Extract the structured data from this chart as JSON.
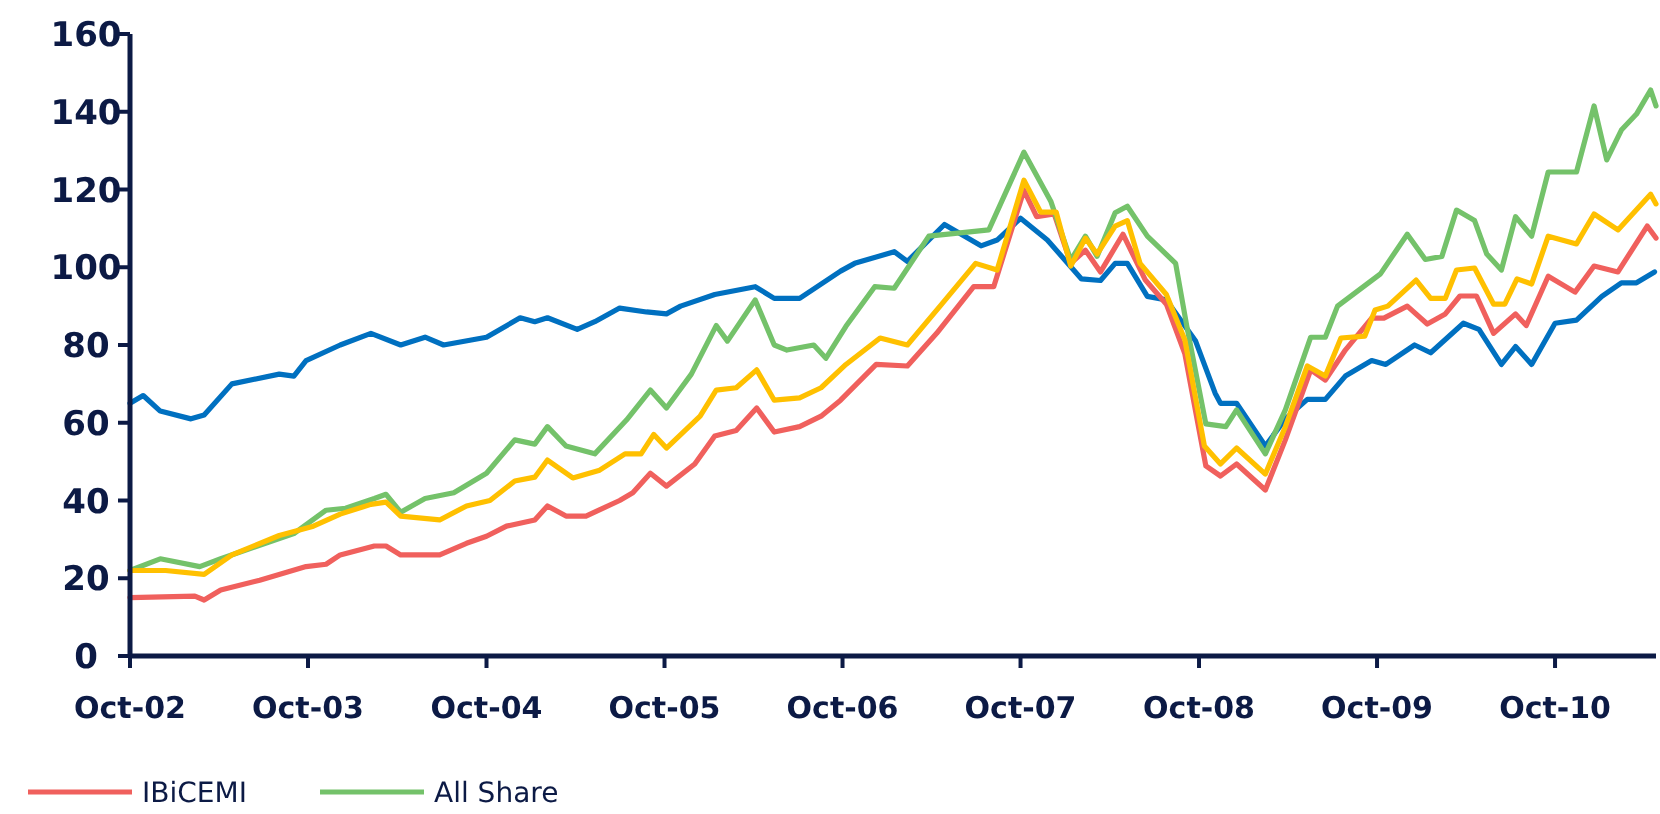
{
  "chart_data": {
    "type": "line",
    "xlim": [
      "2002-10-01",
      "2011-04-26"
    ],
    "ylim": [
      0,
      160
    ],
    "yticks": [
      0,
      20,
      40,
      60,
      80,
      100,
      120,
      140,
      160
    ],
    "xticks": [
      {
        "value": "2002-10-01",
        "label": "Oct-02"
      },
      {
        "value": "2003-10-01",
        "label": "Oct-03"
      },
      {
        "value": "2004-10-01",
        "label": "Oct-04"
      },
      {
        "value": "2005-10-01",
        "label": "Oct-05"
      },
      {
        "value": "2006-10-01",
        "label": "Oct-06"
      },
      {
        "value": "2007-10-01",
        "label": "Oct-07"
      },
      {
        "value": "2008-10-01",
        "label": "Oct-08"
      },
      {
        "value": "2009-10-01",
        "label": "Oct-09"
      },
      {
        "value": "2010-10-01",
        "label": "Oct-10"
      }
    ],
    "grid": false,
    "legend": "bottom",
    "marker": "none",
    "line_style": "solid",
    "series": [
      {
        "color": "#0070c0",
        "x": [
          "2002-10-01",
          "2002-10-28",
          "2002-12-02",
          "2003-02-03",
          "2003-03-02",
          "2003-04-28",
          "2003-08-03",
          "2003-09-02",
          "2003-09-27",
          "2003-12-06",
          "2004-02-07",
          "2004-04-08",
          "2004-05-28",
          "2004-07-05",
          "2004-10-01",
          "2004-12-09",
          "2005-01-08",
          "2005-02-03",
          "2005-04-05",
          "2005-05-11",
          "2005-07-01",
          "2005-08-25",
          "2005-10-05",
          "2005-11-03",
          "2006-01-12",
          "2006-04-05",
          "2006-05-14",
          "2006-07-05",
          "2006-09-27",
          "2006-10-26",
          "2007-01-15",
          "2007-02-11",
          "2007-04-28",
          "2007-07-12",
          "2007-08-14",
          "2007-10-01",
          "2007-11-25",
          "2008-02-03",
          "2008-03-13",
          "2008-04-12",
          "2008-05-07",
          "2008-06-17",
          "2008-07-26",
          "2008-09-24",
          "2008-11-03",
          "2008-11-14",
          "2008-12-17",
          "2009-02-14",
          "2009-03-27",
          "2009-05-11",
          "2009-06-17",
          "2009-07-28",
          "2009-09-20",
          "2009-10-19",
          "2009-12-17",
          "2010-01-19",
          "2010-03-27",
          "2010-04-28",
          "2010-06-13",
          "2010-07-12",
          "2010-08-14",
          "2010-10-01",
          "2010-11-14",
          "2011-01-05",
          "2011-02-14",
          "2011-03-17",
          "2011-04-23"
        ],
        "values": [
          65,
          67,
          63,
          61,
          62,
          70,
          72.5,
          72,
          76,
          80,
          83,
          80,
          82,
          80,
          82,
          87,
          86,
          87,
          84,
          86,
          89.5,
          88.5,
          88,
          90,
          93,
          95,
          92,
          92,
          99,
          101,
          104,
          101.5,
          111,
          105.5,
          107,
          112.6,
          107,
          97,
          96.6,
          101,
          101,
          92.5,
          91.6,
          81,
          67.6,
          65,
          65,
          54,
          61,
          66,
          66,
          72,
          76,
          75,
          80,
          78,
          85.6,
          84,
          75,
          79.6,
          75,
          85.6,
          86.4,
          92.5,
          96,
          96,
          98.8
        ]
      },
      {
        "name": "IBiCEMI",
        "color": "#f0605d",
        "x": [
          "2002-10-01",
          "2003-02-11",
          "2003-03-02",
          "2003-04-05",
          "2003-06-24",
          "2003-09-27",
          "2003-11-07",
          "2003-12-06",
          "2004-02-14",
          "2004-03-09",
          "2004-04-08",
          "2004-06-27",
          "2004-08-21",
          "2004-10-01",
          "2004-11-11",
          "2005-01-08",
          "2005-02-03",
          "2005-03-13",
          "2005-04-23",
          "2005-07-01",
          "2005-07-28",
          "2005-09-02",
          "2005-10-05",
          "2005-12-02",
          "2006-01-12",
          "2006-02-25",
          "2006-04-08",
          "2006-05-14",
          "2006-07-05",
          "2006-08-18",
          "2006-09-27",
          "2006-12-09",
          "2007-02-11",
          "2007-04-12",
          "2007-06-27",
          "2007-08-07",
          "2007-10-08",
          "2007-11-03",
          "2007-12-09",
          "2008-01-12",
          "2008-02-11",
          "2008-03-13",
          "2008-04-28",
          "2008-06-13",
          "2008-07-26",
          "2008-09-02",
          "2008-10-15",
          "2008-11-14",
          "2008-12-17",
          "2009-02-14",
          "2009-03-27",
          "2009-05-18",
          "2009-06-17",
          "2009-07-28",
          "2009-09-20",
          "2009-10-15",
          "2009-12-02",
          "2010-01-12",
          "2010-02-18",
          "2010-03-20",
          "2010-04-23",
          "2010-05-28",
          "2010-07-12",
          "2010-08-03",
          "2010-09-17",
          "2010-11-11",
          "2010-12-20",
          "2011-02-07",
          "2011-04-08",
          "2011-04-26"
        ],
        "values": [
          15,
          15.4,
          14.4,
          17,
          19.5,
          23,
          23.6,
          26,
          28.3,
          28.3,
          26,
          26,
          29,
          30.8,
          33.4,
          35,
          38.6,
          36,
          36,
          40,
          42,
          47,
          43.7,
          49.4,
          56.6,
          58,
          63.8,
          57.6,
          59,
          61.7,
          65.8,
          75,
          74.6,
          83,
          95,
          95,
          119.8,
          113,
          113.7,
          101,
          104.4,
          98.8,
          108.5,
          96.7,
          90.5,
          77.7,
          48.9,
          46.3,
          49.4,
          42.7,
          55.6,
          73.6,
          71,
          78.7,
          86.9,
          86.9,
          90,
          85.4,
          88,
          92.6,
          92.6,
          83,
          88,
          85,
          97.7,
          93.6,
          100.3,
          98.8,
          110.6,
          107.5
        ]
      },
      {
        "name": "All Share",
        "color": "#74c26a",
        "x": [
          "2002-10-01",
          "2002-12-02",
          "2003-02-21",
          "2003-04-05",
          "2003-09-02",
          "2003-11-07",
          "2003-12-17",
          "2004-02-14",
          "2004-03-09",
          "2004-04-08",
          "2004-05-28",
          "2004-07-26",
          "2004-10-01",
          "2004-11-28",
          "2005-01-08",
          "2005-02-03",
          "2005-03-13",
          "2005-05-11",
          "2005-07-15",
          "2005-09-02",
          "2005-10-05",
          "2005-11-25",
          "2006-01-15",
          "2006-02-07",
          "2006-04-05",
          "2006-05-14",
          "2006-06-09",
          "2006-08-03",
          "2006-08-28",
          "2006-10-08",
          "2006-12-06",
          "2007-01-15",
          "2007-03-27",
          "2007-07-28",
          "2007-10-08",
          "2007-12-02",
          "2008-01-12",
          "2008-02-11",
          "2008-03-06",
          "2008-04-12",
          "2008-05-07",
          "2008-06-17",
          "2008-08-14",
          "2008-09-06",
          "2008-10-15",
          "2008-11-25",
          "2008-12-17",
          "2009-02-14",
          "2009-03-27",
          "2009-05-18",
          "2009-06-17",
          "2009-07-12",
          "2009-10-08",
          "2009-12-02",
          "2010-01-08",
          "2010-02-11",
          "2010-03-13",
          "2010-04-19",
          "2010-05-14",
          "2010-06-13",
          "2010-07-12",
          "2010-08-14",
          "2010-09-17",
          "2010-11-14",
          "2010-12-20",
          "2011-01-15",
          "2011-02-14",
          "2011-03-17",
          "2011-04-15",
          "2011-04-26"
        ],
        "values": [
          22,
          25,
          23,
          25,
          31.5,
          37.5,
          38,
          40.5,
          41.6,
          37,
          40.5,
          42,
          47,
          55.6,
          54.5,
          59,
          54,
          52,
          60.7,
          68.4,
          63.8,
          72.5,
          85,
          81,
          91.6,
          80,
          78.7,
          80,
          76.6,
          84.8,
          95,
          94.6,
          108,
          109.6,
          129.6,
          117,
          101.8,
          108,
          102.8,
          114,
          115.7,
          108,
          101,
          84.8,
          59.7,
          59,
          63.3,
          52,
          63.3,
          82,
          82,
          90,
          98.3,
          108.5,
          102,
          102.8,
          114.7,
          112,
          103.4,
          99.3,
          113,
          108,
          124.5,
          124.5,
          141.5,
          127.6,
          135.3,
          139.4,
          145.6,
          141.5
        ]
      },
      {
        "color": "#ffc000",
        "x": [
          "2002-10-01",
          "2002-12-13",
          "2003-03-02",
          "2003-04-28",
          "2003-08-03",
          "2003-10-12",
          "2003-12-06",
          "2004-02-07",
          "2004-03-09",
          "2004-04-08",
          "2004-06-27",
          "2004-08-21",
          "2004-10-08",
          "2004-11-28",
          "2005-01-08",
          "2005-02-03",
          "2005-03-27",
          "2005-05-21",
          "2005-07-12",
          "2005-08-14",
          "2005-09-09",
          "2005-10-05",
          "2005-12-13",
          "2006-01-15",
          "2006-02-25",
          "2006-04-08",
          "2006-05-14",
          "2006-07-05",
          "2006-08-18",
          "2006-10-08",
          "2006-12-17",
          "2007-02-11",
          "2007-04-19",
          "2007-07-01",
          "2007-08-14",
          "2007-10-08",
          "2007-11-11",
          "2007-12-13",
          "2008-01-12",
          "2008-02-11",
          "2008-03-06",
          "2008-04-12",
          "2008-05-07",
          "2008-06-02",
          "2008-07-26",
          "2008-09-02",
          "2008-10-12",
          "2008-11-14",
          "2008-12-17",
          "2009-02-14",
          "2009-03-27",
          "2009-05-11",
          "2009-06-17",
          "2009-07-19",
          "2009-09-06",
          "2009-09-27",
          "2009-10-23",
          "2009-12-20",
          "2010-01-19",
          "2010-02-18",
          "2010-03-13",
          "2010-04-19",
          "2010-05-28",
          "2010-06-20",
          "2010-07-15",
          "2010-08-14",
          "2010-09-17",
          "2010-11-14",
          "2010-12-20",
          "2011-02-07",
          "2011-04-15",
          "2011-04-26"
        ],
        "values": [
          22,
          22,
          21,
          26,
          31,
          33.4,
          36.5,
          39,
          39.6,
          36,
          35,
          38.6,
          40,
          45,
          46,
          50.4,
          45.8,
          47.8,
          52,
          52,
          57,
          53.5,
          61.7,
          68.4,
          69,
          73.6,
          65.8,
          66.4,
          69,
          75,
          81.8,
          80,
          90,
          101,
          99.3,
          122.4,
          114.2,
          114.2,
          100.3,
          107.5,
          103.4,
          110.6,
          112,
          101,
          93,
          81.3,
          54,
          49.4,
          53.5,
          46.8,
          59,
          74.6,
          72,
          81.8,
          82.3,
          89,
          90,
          96.7,
          92,
          92,
          99.3,
          99.8,
          90.5,
          90.5,
          97,
          95.7,
          108,
          106,
          113.7,
          109.6,
          118.8,
          116.3
        ]
      }
    ]
  }
}
